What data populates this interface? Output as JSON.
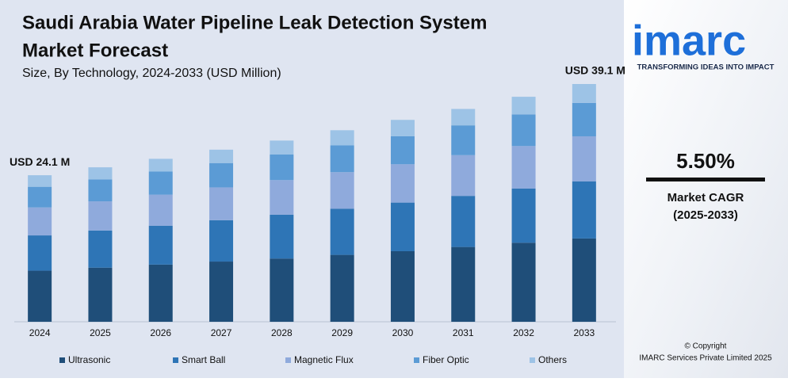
{
  "chart_data": {
    "type": "stacked_bar",
    "title": "Saudi Arabia Water Pipeline Leak Detection System Market Forecast",
    "title_lines": [
      "Saudi Arabia Water Pipeline Leak Detection System",
      "Market Forecast"
    ],
    "subtitle": "Size, By Technology, 2024-2033 (USD Million)",
    "categories": [
      "2024",
      "2025",
      "2026",
      "2027",
      "2028",
      "2029",
      "2030",
      "2031",
      "2032",
      "2033"
    ],
    "series": [
      {
        "name": "Ultrasonic",
        "color": "#1f4e79",
        "values": [
          8.4,
          8.9,
          9.4,
          9.9,
          10.4,
          11.0,
          11.6,
          12.3,
          13.0,
          13.7
        ]
      },
      {
        "name": "Smart Ball",
        "color": "#2e75b6",
        "values": [
          5.8,
          6.1,
          6.4,
          6.8,
          7.2,
          7.6,
          8.0,
          8.4,
          8.9,
          9.4
        ]
      },
      {
        "name": "Magnetic Flux",
        "color": "#8faadc",
        "values": [
          4.6,
          4.8,
          5.1,
          5.4,
          5.7,
          6.0,
          6.3,
          6.7,
          7.0,
          7.4
        ]
      },
      {
        "name": "Fiber Optic",
        "color": "#5b9bd5",
        "values": [
          3.4,
          3.6,
          3.8,
          4.0,
          4.2,
          4.4,
          4.6,
          4.9,
          5.2,
          5.5
        ]
      },
      {
        "name": "Others",
        "color": "#9dc3e6",
        "values": [
          1.9,
          2.0,
          2.1,
          2.2,
          2.3,
          2.5,
          2.7,
          2.7,
          2.9,
          3.1
        ]
      }
    ],
    "annotations": [
      "USD 24.1 M",
      "USD 39.1 M"
    ]
  },
  "sidebar": {
    "logo": "imarc",
    "tagline": "TRANSFORMING IDEAS INTO IMPACT",
    "cagr": "5.50%",
    "cagr_label": "Market CAGR",
    "cagr_period": "(2025-2033)",
    "copyright": "© Copyright",
    "company": "IMARC Services Private Limited 2025"
  }
}
